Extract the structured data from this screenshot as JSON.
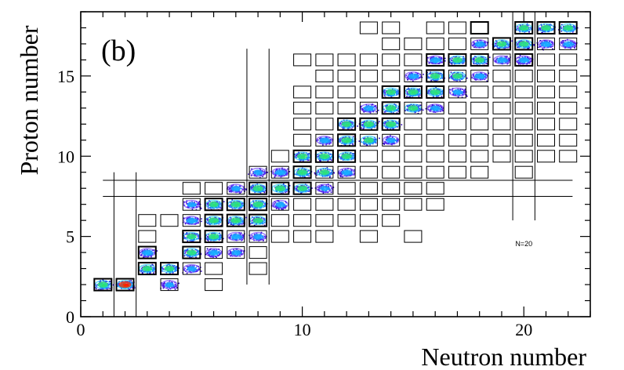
{
  "chart_data": {
    "type": "scatter",
    "title": "",
    "panel_label": "(b)",
    "xlabel": "Neutron number",
    "ylabel": "Proton number",
    "xlim": [
      0,
      23
    ],
    "ylim": [
      0,
      19
    ],
    "x_major_ticks": [
      0,
      10,
      20
    ],
    "y_major_ticks": [
      0,
      5,
      10,
      15
    ],
    "x_tick_labels": [
      "0",
      "10",
      "20"
    ],
    "y_tick_labels": [
      "0",
      "5",
      "10",
      "15"
    ],
    "annotation": {
      "text": "N=20",
      "x": 20,
      "y": 4.4
    },
    "gate_boxes": [
      {
        "N": 1,
        "Z": 2
      },
      {
        "N": 2,
        "Z": 2
      },
      {
        "N": 3,
        "Z": 3
      },
      {
        "N": 3,
        "Z": 4
      },
      {
        "N": 3,
        "Z": 5
      },
      {
        "N": 3,
        "Z": 6
      },
      {
        "N": 4,
        "Z": 2
      },
      {
        "N": 4,
        "Z": 3
      },
      {
        "N": 4,
        "Z": 6
      },
      {
        "N": 5,
        "Z": 3
      },
      {
        "N": 5,
        "Z": 4
      },
      {
        "N": 5,
        "Z": 5
      },
      {
        "N": 5,
        "Z": 6
      },
      {
        "N": 5,
        "Z": 7
      },
      {
        "N": 5,
        "Z": 8
      },
      {
        "N": 6,
        "Z": 2
      },
      {
        "N": 6,
        "Z": 3
      },
      {
        "N": 6,
        "Z": 4
      },
      {
        "N": 6,
        "Z": 5
      },
      {
        "N": 6,
        "Z": 6
      },
      {
        "N": 6,
        "Z": 7
      },
      {
        "N": 6,
        "Z": 8
      },
      {
        "N": 7,
        "Z": 4
      },
      {
        "N": 7,
        "Z": 5
      },
      {
        "N": 7,
        "Z": 6
      },
      {
        "N": 7,
        "Z": 7
      },
      {
        "N": 7,
        "Z": 8
      },
      {
        "N": 8,
        "Z": 3
      },
      {
        "N": 8,
        "Z": 4
      },
      {
        "N": 8,
        "Z": 5
      },
      {
        "N": 8,
        "Z": 6
      },
      {
        "N": 8,
        "Z": 7
      },
      {
        "N": 8,
        "Z": 8
      },
      {
        "N": 8,
        "Z": 9
      },
      {
        "N": 9,
        "Z": 5
      },
      {
        "N": 9,
        "Z": 6
      },
      {
        "N": 9,
        "Z": 7
      },
      {
        "N": 9,
        "Z": 8
      },
      {
        "N": 9,
        "Z": 9
      },
      {
        "N": 9,
        "Z": 10
      },
      {
        "N": 10,
        "Z": 5
      },
      {
        "N": 10,
        "Z": 6
      },
      {
        "N": 10,
        "Z": 7
      },
      {
        "N": 10,
        "Z": 8
      },
      {
        "N": 10,
        "Z": 9
      },
      {
        "N": 10,
        "Z": 10
      },
      {
        "N": 10,
        "Z": 11
      },
      {
        "N": 10,
        "Z": 12
      },
      {
        "N": 10,
        "Z": 13
      },
      {
        "N": 10,
        "Z": 14
      },
      {
        "N": 10,
        "Z": 16
      },
      {
        "N": 11,
        "Z": 5
      },
      {
        "N": 11,
        "Z": 6
      },
      {
        "N": 11,
        "Z": 7
      },
      {
        "N": 11,
        "Z": 8
      },
      {
        "N": 11,
        "Z": 9
      },
      {
        "N": 11,
        "Z": 10
      },
      {
        "N": 11,
        "Z": 11
      },
      {
        "N": 11,
        "Z": 12
      },
      {
        "N": 11,
        "Z": 13
      },
      {
        "N": 11,
        "Z": 14
      },
      {
        "N": 11,
        "Z": 15
      },
      {
        "N": 11,
        "Z": 16
      },
      {
        "N": 12,
        "Z": 6
      },
      {
        "N": 12,
        "Z": 7
      },
      {
        "N": 12,
        "Z": 8
      },
      {
        "N": 12,
        "Z": 9
      },
      {
        "N": 12,
        "Z": 10
      },
      {
        "N": 12,
        "Z": 11
      },
      {
        "N": 12,
        "Z": 12
      },
      {
        "N": 12,
        "Z": 13
      },
      {
        "N": 12,
        "Z": 14
      },
      {
        "N": 12,
        "Z": 15
      },
      {
        "N": 12,
        "Z": 16
      },
      {
        "N": 13,
        "Z": 5
      },
      {
        "N": 13,
        "Z": 6
      },
      {
        "N": 13,
        "Z": 7
      },
      {
        "N": 13,
        "Z": 8
      },
      {
        "N": 13,
        "Z": 9
      },
      {
        "N": 13,
        "Z": 10
      },
      {
        "N": 13,
        "Z": 11
      },
      {
        "N": 13,
        "Z": 12
      },
      {
        "N": 13,
        "Z": 13
      },
      {
        "N": 13,
        "Z": 14
      },
      {
        "N": 13,
        "Z": 15
      },
      {
        "N": 13,
        "Z": 16
      },
      {
        "N": 13,
        "Z": 18
      },
      {
        "N": 14,
        "Z": 6
      },
      {
        "N": 14,
        "Z": 7
      },
      {
        "N": 14,
        "Z": 8
      },
      {
        "N": 14,
        "Z": 9
      },
      {
        "N": 14,
        "Z": 10
      },
      {
        "N": 14,
        "Z": 11
      },
      {
        "N": 14,
        "Z": 12
      },
      {
        "N": 14,
        "Z": 13
      },
      {
        "N": 14,
        "Z": 14
      },
      {
        "N": 14,
        "Z": 15
      },
      {
        "N": 14,
        "Z": 16
      },
      {
        "N": 14,
        "Z": 17
      },
      {
        "N": 14,
        "Z": 18
      },
      {
        "N": 15,
        "Z": 5
      },
      {
        "N": 15,
        "Z": 7
      },
      {
        "N": 15,
        "Z": 8
      },
      {
        "N": 15,
        "Z": 9
      },
      {
        "N": 15,
        "Z": 10
      },
      {
        "N": 15,
        "Z": 11
      },
      {
        "N": 15,
        "Z": 12
      },
      {
        "N": 15,
        "Z": 13
      },
      {
        "N": 15,
        "Z": 14
      },
      {
        "N": 15,
        "Z": 15
      },
      {
        "N": 15,
        "Z": 16
      },
      {
        "N": 15,
        "Z": 17
      },
      {
        "N": 16,
        "Z": 7
      },
      {
        "N": 16,
        "Z": 8
      },
      {
        "N": 16,
        "Z": 9
      },
      {
        "N": 16,
        "Z": 10
      },
      {
        "N": 16,
        "Z": 11
      },
      {
        "N": 16,
        "Z": 12
      },
      {
        "N": 16,
        "Z": 13
      },
      {
        "N": 16,
        "Z": 14
      },
      {
        "N": 16,
        "Z": 15
      },
      {
        "N": 16,
        "Z": 16
      },
      {
        "N": 16,
        "Z": 17
      },
      {
        "N": 16,
        "Z": 18
      },
      {
        "N": 17,
        "Z": 9
      },
      {
        "N": 17,
        "Z": 10
      },
      {
        "N": 17,
        "Z": 11
      },
      {
        "N": 17,
        "Z": 12
      },
      {
        "N": 17,
        "Z": 13
      },
      {
        "N": 17,
        "Z": 14
      },
      {
        "N": 17,
        "Z": 15
      },
      {
        "N": 17,
        "Z": 16
      },
      {
        "N": 17,
        "Z": 17
      },
      {
        "N": 17,
        "Z": 18
      },
      {
        "N": 18,
        "Z": 9
      },
      {
        "N": 18,
        "Z": 10
      },
      {
        "N": 18,
        "Z": 11
      },
      {
        "N": 18,
        "Z": 12
      },
      {
        "N": 18,
        "Z": 13
      },
      {
        "N": 18,
        "Z": 14
      },
      {
        "N": 18,
        "Z": 15
      },
      {
        "N": 18,
        "Z": 16
      },
      {
        "N": 18,
        "Z": 17
      },
      {
        "N": 18,
        "Z": 18
      },
      {
        "N": 19,
        "Z": 10
      },
      {
        "N": 19,
        "Z": 11
      },
      {
        "N": 19,
        "Z": 12
      },
      {
        "N": 19,
        "Z": 13
      },
      {
        "N": 19,
        "Z": 14
      },
      {
        "N": 19,
        "Z": 15
      },
      {
        "N": 19,
        "Z": 16
      },
      {
        "N": 19,
        "Z": 17
      },
      {
        "N": 20,
        "Z": 9
      },
      {
        "N": 20,
        "Z": 10
      },
      {
        "N": 20,
        "Z": 11
      },
      {
        "N": 20,
        "Z": 12
      },
      {
        "N": 20,
        "Z": 13
      },
      {
        "N": 20,
        "Z": 14
      },
      {
        "N": 20,
        "Z": 15
      },
      {
        "N": 20,
        "Z": 16
      },
      {
        "N": 20,
        "Z": 17
      },
      {
        "N": 20,
        "Z": 18
      },
      {
        "N": 21,
        "Z": 10
      },
      {
        "N": 21,
        "Z": 11
      },
      {
        "N": 21,
        "Z": 12
      },
      {
        "N": 21,
        "Z": 13
      },
      {
        "N": 21,
        "Z": 14
      },
      {
        "N": 21,
        "Z": 15
      },
      {
        "N": 21,
        "Z": 16
      },
      {
        "N": 21,
        "Z": 17
      },
      {
        "N": 21,
        "Z": 18
      },
      {
        "N": 22,
        "Z": 10
      },
      {
        "N": 22,
        "Z": 11
      },
      {
        "N": 22,
        "Z": 12
      },
      {
        "N": 22,
        "Z": 13
      },
      {
        "N": 22,
        "Z": 14
      },
      {
        "N": 22,
        "Z": 15
      },
      {
        "N": 22,
        "Z": 16
      },
      {
        "N": 22,
        "Z": 17
      },
      {
        "N": 22,
        "Z": 18
      }
    ],
    "bold_boxes": [
      {
        "N": 1,
        "Z": 2
      },
      {
        "N": 2,
        "Z": 2
      },
      {
        "N": 3,
        "Z": 3
      },
      {
        "N": 3,
        "Z": 4
      },
      {
        "N": 4,
        "Z": 3
      },
      {
        "N": 5,
        "Z": 4
      },
      {
        "N": 5,
        "Z": 5
      },
      {
        "N": 6,
        "Z": 5
      },
      {
        "N": 6,
        "Z": 6
      },
      {
        "N": 6,
        "Z": 7
      },
      {
        "N": 7,
        "Z": 6
      },
      {
        "N": 7,
        "Z": 7
      },
      {
        "N": 8,
        "Z": 6
      },
      {
        "N": 8,
        "Z": 7
      },
      {
        "N": 8,
        "Z": 8
      },
      {
        "N": 9,
        "Z": 8
      },
      {
        "N": 10,
        "Z": 8
      },
      {
        "N": 10,
        "Z": 9
      },
      {
        "N": 10,
        "Z": 10
      },
      {
        "N": 11,
        "Z": 10
      },
      {
        "N": 12,
        "Z": 10
      },
      {
        "N": 12,
        "Z": 11
      },
      {
        "N": 12,
        "Z": 12
      },
      {
        "N": 13,
        "Z": 12
      },
      {
        "N": 14,
        "Z": 12
      },
      {
        "N": 14,
        "Z": 13
      },
      {
        "N": 14,
        "Z": 14
      },
      {
        "N": 15,
        "Z": 14
      },
      {
        "N": 16,
        "Z": 14
      },
      {
        "N": 16,
        "Z": 15
      },
      {
        "N": 16,
        "Z": 16
      },
      {
        "N": 17,
        "Z": 16
      },
      {
        "N": 18,
        "Z": 16
      },
      {
        "N": 18,
        "Z": 18
      },
      {
        "N": 19,
        "Z": 17
      },
      {
        "N": 20,
        "Z": 16
      },
      {
        "N": 20,
        "Z": 17
      },
      {
        "N": 20,
        "Z": 18
      },
      {
        "N": 21,
        "Z": 18
      },
      {
        "N": 22,
        "Z": 18
      }
    ],
    "populated_isotopes": [
      {
        "N": 1,
        "Z": 2,
        "intensity": 0.6
      },
      {
        "N": 2,
        "Z": 2,
        "intensity": 1.0
      },
      {
        "N": 3,
        "Z": 3,
        "intensity": 0.5
      },
      {
        "N": 3,
        "Z": 4,
        "intensity": 0.4
      },
      {
        "N": 4,
        "Z": 2,
        "intensity": 0.2
      },
      {
        "N": 4,
        "Z": 3,
        "intensity": 0.5
      },
      {
        "N": 5,
        "Z": 3,
        "intensity": 0.2
      },
      {
        "N": 5,
        "Z": 4,
        "intensity": 0.5
      },
      {
        "N": 5,
        "Z": 5,
        "intensity": 0.5
      },
      {
        "N": 5,
        "Z": 6,
        "intensity": 0.4
      },
      {
        "N": 5,
        "Z": 7,
        "intensity": 0.2
      },
      {
        "N": 6,
        "Z": 4,
        "intensity": 0.4
      },
      {
        "N": 6,
        "Z": 5,
        "intensity": 0.6
      },
      {
        "N": 6,
        "Z": 6,
        "intensity": 0.6
      },
      {
        "N": 6,
        "Z": 7,
        "intensity": 0.5
      },
      {
        "N": 7,
        "Z": 4,
        "intensity": 0.2
      },
      {
        "N": 7,
        "Z": 5,
        "intensity": 0.4
      },
      {
        "N": 7,
        "Z": 6,
        "intensity": 0.6
      },
      {
        "N": 7,
        "Z": 7,
        "intensity": 0.6
      },
      {
        "N": 7,
        "Z": 8,
        "intensity": 0.3
      },
      {
        "N": 8,
        "Z": 5,
        "intensity": 0.3
      },
      {
        "N": 8,
        "Z": 6,
        "intensity": 0.5
      },
      {
        "N": 8,
        "Z": 7,
        "intensity": 0.6
      },
      {
        "N": 8,
        "Z": 8,
        "intensity": 0.6
      },
      {
        "N": 8,
        "Z": 9,
        "intensity": 0.2
      },
      {
        "N": 9,
        "Z": 7,
        "intensity": 0.3
      },
      {
        "N": 9,
        "Z": 8,
        "intensity": 0.6
      },
      {
        "N": 9,
        "Z": 9,
        "intensity": 0.4
      },
      {
        "N": 10,
        "Z": 8,
        "intensity": 0.5
      },
      {
        "N": 10,
        "Z": 9,
        "intensity": 0.6
      },
      {
        "N": 10,
        "Z": 10,
        "intensity": 0.6
      },
      {
        "N": 11,
        "Z": 8,
        "intensity": 0.2
      },
      {
        "N": 11,
        "Z": 9,
        "intensity": 0.5
      },
      {
        "N": 11,
        "Z": 10,
        "intensity": 0.6
      },
      {
        "N": 11,
        "Z": 11,
        "intensity": 0.4
      },
      {
        "N": 12,
        "Z": 9,
        "intensity": 0.4
      },
      {
        "N": 12,
        "Z": 10,
        "intensity": 0.6
      },
      {
        "N": 12,
        "Z": 11,
        "intensity": 0.6
      },
      {
        "N": 12,
        "Z": 12,
        "intensity": 0.5
      },
      {
        "N": 13,
        "Z": 11,
        "intensity": 0.5
      },
      {
        "N": 13,
        "Z": 12,
        "intensity": 0.6
      },
      {
        "N": 13,
        "Z": 13,
        "intensity": 0.4
      },
      {
        "N": 14,
        "Z": 11,
        "intensity": 0.3
      },
      {
        "N": 14,
        "Z": 12,
        "intensity": 0.6
      },
      {
        "N": 14,
        "Z": 13,
        "intensity": 0.6
      },
      {
        "N": 14,
        "Z": 14,
        "intensity": 0.5
      },
      {
        "N": 15,
        "Z": 13,
        "intensity": 0.5
      },
      {
        "N": 15,
        "Z": 14,
        "intensity": 0.6
      },
      {
        "N": 15,
        "Z": 15,
        "intensity": 0.3
      },
      {
        "N": 16,
        "Z": 13,
        "intensity": 0.3
      },
      {
        "N": 16,
        "Z": 14,
        "intensity": 0.6
      },
      {
        "N": 16,
        "Z": 15,
        "intensity": 0.6
      },
      {
        "N": 16,
        "Z": 16,
        "intensity": 0.4
      },
      {
        "N": 17,
        "Z": 14,
        "intensity": 0.3
      },
      {
        "N": 17,
        "Z": 15,
        "intensity": 0.5
      },
      {
        "N": 17,
        "Z": 16,
        "intensity": 0.5
      },
      {
        "N": 18,
        "Z": 15,
        "intensity": 0.4
      },
      {
        "N": 18,
        "Z": 16,
        "intensity": 0.5
      },
      {
        "N": 18,
        "Z": 17,
        "intensity": 0.3
      },
      {
        "N": 19,
        "Z": 16,
        "intensity": 0.4
      },
      {
        "N": 19,
        "Z": 17,
        "intensity": 0.5
      },
      {
        "N": 20,
        "Z": 16,
        "intensity": 0.4
      },
      {
        "N": 20,
        "Z": 17,
        "intensity": 0.5
      },
      {
        "N": 20,
        "Z": 18,
        "intensity": 0.5
      },
      {
        "N": 21,
        "Z": 17,
        "intensity": 0.4
      },
      {
        "N": 21,
        "Z": 18,
        "intensity": 0.5
      },
      {
        "N": 22,
        "Z": 17,
        "intensity": 0.3
      },
      {
        "N": 22,
        "Z": 18,
        "intensity": 0.5
      }
    ],
    "reference_lines": {
      "horizontal": [
        7.5,
        8.5
      ],
      "vertical": [
        1.5,
        2.5,
        7.5,
        8.5,
        19.5,
        20.5
      ],
      "horizontal_x_range": [
        1,
        22.2
      ],
      "vertical_ranges": {
        "1.5": [
          0,
          9
        ],
        "2.5": [
          0,
          9
        ],
        "7.5": [
          2,
          16.7
        ],
        "8.5": [
          2,
          16.7
        ],
        "19.5": [
          6,
          19
        ],
        "20.5": [
          6,
          19
        ]
      }
    },
    "colors": {
      "axis": "#000000",
      "box_stroke": "#000000",
      "colormap": [
        "#2a00b8",
        "#4f1ee6",
        "#1f8cff",
        "#00d9ff",
        "#27e07a",
        "#ffe600",
        "#ff1a00"
      ]
    }
  }
}
